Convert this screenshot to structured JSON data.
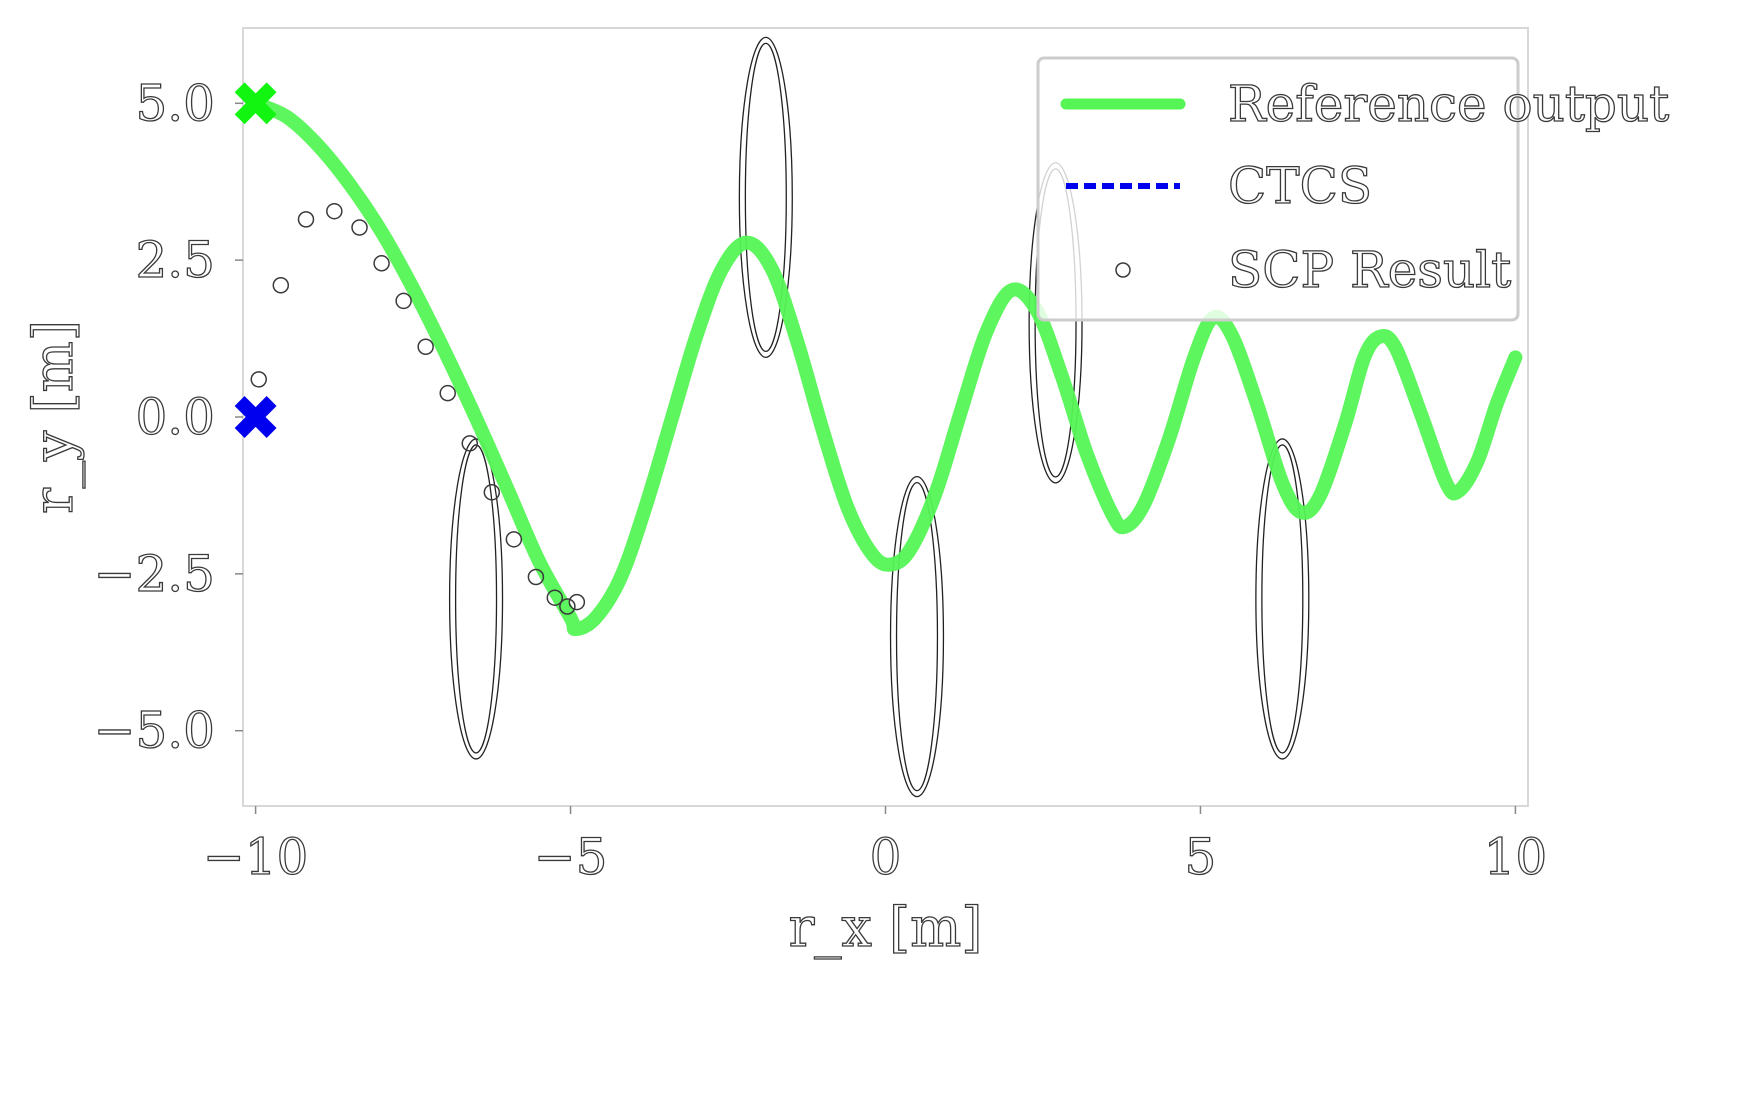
{
  "chart_data": {
    "type": "line",
    "xlabel": "r_x [m]",
    "ylabel": "r_y [m]",
    "xlim": [
      -10.2,
      10.2
    ],
    "ylim": [
      -6.2,
      6.2
    ],
    "xticks": [
      -10,
      -5,
      0,
      5,
      10
    ],
    "xtick_labels": [
      "−10",
      "−5",
      "0",
      "5",
      "10"
    ],
    "yticks": [
      -5.0,
      -2.5,
      0.0,
      2.5,
      5.0
    ],
    "ytick_labels": [
      "−5.0",
      "−2.5",
      "0.0",
      "2.5",
      "5.0"
    ],
    "grid": false,
    "legend_placement": "top-right",
    "legend": [
      "Reference output",
      "CTCS",
      "SCP Result"
    ],
    "series": [
      {
        "name": "Reference output",
        "color": "#55f555",
        "style": "solid",
        "points": [
          [
            -10,
            5.0
          ],
          [
            -9.5,
            4.78
          ],
          [
            -9.0,
            4.32
          ],
          [
            -8.5,
            3.7
          ],
          [
            -8.0,
            2.95
          ],
          [
            -7.5,
            2.05
          ],
          [
            -7.0,
            1.05
          ],
          [
            -6.5,
            -0.02
          ],
          [
            -6.0,
            -1.15
          ],
          [
            -5.5,
            -2.3
          ],
          [
            -5.0,
            -3.2
          ],
          [
            -4.92,
            -3.38
          ],
          [
            -4.6,
            -3.2
          ],
          [
            -4.2,
            -2.55
          ],
          [
            -3.8,
            -1.4
          ],
          [
            -3.4,
            -0.05
          ],
          [
            -3.0,
            1.3
          ],
          [
            -2.6,
            2.35
          ],
          [
            -2.2,
            2.78
          ],
          [
            -1.8,
            2.35
          ],
          [
            -1.4,
            1.2
          ],
          [
            -1.0,
            -0.2
          ],
          [
            -0.6,
            -1.45
          ],
          [
            -0.2,
            -2.2
          ],
          [
            0.1,
            -2.35
          ],
          [
            0.4,
            -2.1
          ],
          [
            0.8,
            -1.2
          ],
          [
            1.2,
            0.1
          ],
          [
            1.6,
            1.35
          ],
          [
            2.0,
            2.02
          ],
          [
            2.4,
            1.7
          ],
          [
            2.8,
            0.65
          ],
          [
            3.2,
            -0.6
          ],
          [
            3.6,
            -1.55
          ],
          [
            3.8,
            -1.75
          ],
          [
            4.1,
            -1.4
          ],
          [
            4.5,
            -0.35
          ],
          [
            4.9,
            0.95
          ],
          [
            5.2,
            1.58
          ],
          [
            5.5,
            1.3
          ],
          [
            5.9,
            0.2
          ],
          [
            6.3,
            -1.05
          ],
          [
            6.6,
            -1.52
          ],
          [
            6.9,
            -1.25
          ],
          [
            7.3,
            -0.1
          ],
          [
            7.6,
            0.95
          ],
          [
            7.85,
            1.28
          ],
          [
            8.1,
            1.1
          ],
          [
            8.5,
            0.05
          ],
          [
            8.9,
            -1.05
          ],
          [
            9.1,
            -1.18
          ],
          [
            9.4,
            -0.7
          ],
          [
            9.7,
            0.2
          ],
          [
            10.0,
            0.95
          ]
        ]
      },
      {
        "name": "CTCS",
        "color": "#0000ee",
        "style": "dashed",
        "points": []
      },
      {
        "name": "SCP Result",
        "color": "#3a3a3a",
        "style": "circle-markers",
        "points": [
          [
            -9.95,
            0.6
          ],
          [
            -9.6,
            2.1
          ],
          [
            -9.2,
            3.15
          ],
          [
            -8.75,
            3.28
          ],
          [
            -8.35,
            3.02
          ],
          [
            -8.0,
            2.45
          ],
          [
            -7.65,
            1.85
          ],
          [
            -7.3,
            1.12
          ],
          [
            -6.95,
            0.38
          ],
          [
            -6.6,
            -0.42
          ],
          [
            -6.25,
            -1.2
          ],
          [
            -5.9,
            -1.95
          ],
          [
            -5.55,
            -2.55
          ],
          [
            -5.25,
            -2.88
          ],
          [
            -5.05,
            -3.02
          ],
          [
            -4.9,
            -2.95
          ]
        ]
      }
    ],
    "markers": [
      {
        "name": "start",
        "x": -10.0,
        "y": 5.0,
        "color": "#11f511",
        "shape": "x"
      },
      {
        "name": "start",
        "x": -10.0,
        "y": 0.0,
        "color": "#0000ee",
        "shape": "x"
      }
    ],
    "obstacles": [
      {
        "cx": -6.5,
        "cy": -2.9,
        "rx": 0.42,
        "ry": 2.55
      },
      {
        "cx": -1.9,
        "cy": 3.5,
        "rx": 0.42,
        "ry": 2.55
      },
      {
        "cx": 0.5,
        "cy": -3.5,
        "rx": 0.42,
        "ry": 2.55
      },
      {
        "cx": 2.7,
        "cy": 1.5,
        "rx": 0.42,
        "ry": 2.55
      },
      {
        "cx": 6.3,
        "cy": -2.9,
        "rx": 0.42,
        "ry": 2.55
      }
    ]
  }
}
